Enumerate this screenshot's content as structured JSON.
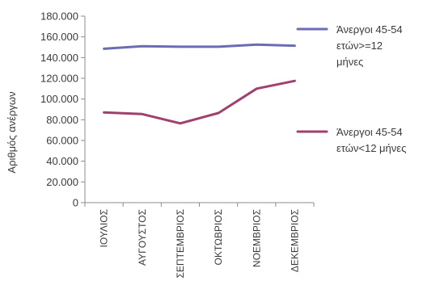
{
  "chart_data": {
    "type": "line",
    "title": "",
    "xlabel": "",
    "ylabel": "Αριθμός ανέργων",
    "ylim": [
      0,
      180000
    ],
    "y_ticks": [
      0,
      20000,
      40000,
      60000,
      80000,
      100000,
      120000,
      140000,
      160000,
      180000
    ],
    "y_tick_labels": [
      "0",
      "20.000",
      "40.000",
      "60.000",
      "80.000",
      "100.000",
      "120.000",
      "140.000",
      "160.000",
      "180.000"
    ],
    "categories": [
      "ΙΟΥΛΙΟΣ",
      "ΑΥΓΟΥΣΤΟΣ",
      "ΣΕΠΤΕΜΒΡΙΟΣ",
      "ΟΚΤΩΒΡΙΟΣ",
      "ΝΟΕΜΒΡΙΟΣ",
      "ΔΕΚΕΜΒΡΙΟΣ"
    ],
    "grid": false,
    "legend_position": "right",
    "series": [
      {
        "name": "Άνεργοι 45-54 ετών>=12 μήνες",
        "legend_lines": [
          "Άνεργοι 45-54",
          "ετών>=12",
          "μήνες"
        ],
        "color": "#6a6cb4",
        "values": [
          148500,
          151000,
          150500,
          150500,
          152500,
          151500
        ]
      },
      {
        "name": "Άνεργοι 45-54 ετών<12 μήνες",
        "legend_lines": [
          "Άνεργοι 45-54",
          "ετών<12 μήνες"
        ],
        "color": "#a0406e",
        "values": [
          87000,
          85500,
          76500,
          86500,
          110000,
          117500
        ]
      }
    ]
  }
}
